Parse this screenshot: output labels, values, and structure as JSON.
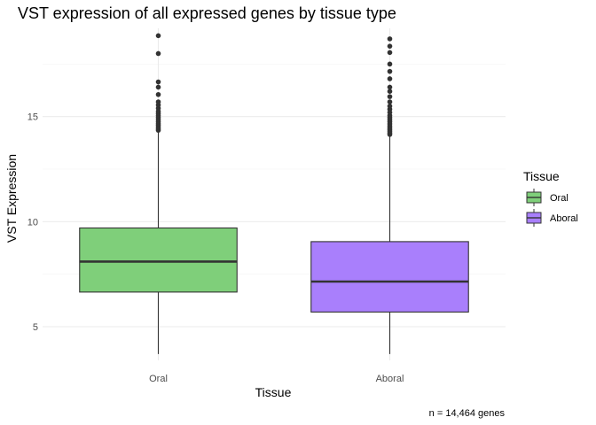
{
  "chart_data": {
    "type": "box",
    "title": "VST expression of all expressed genes by tissue type",
    "xlabel": "Tissue",
    "ylabel": "VST Expression",
    "caption": "n = 14,464 genes",
    "categories": [
      "Oral",
      "Aboral"
    ],
    "ylim": [
      3.4,
      19.2
    ],
    "yticks": [
      5,
      10,
      15
    ],
    "grid": true,
    "legend": {
      "title": "Tissue",
      "position": "right"
    },
    "series": [
      {
        "name": "Oral",
        "color": "#7fcf7a",
        "whisker_low": 3.7,
        "q1": 6.65,
        "median": 8.1,
        "q3": 9.7,
        "whisker_high": 14.3,
        "outliers": [
          14.35,
          14.42,
          14.5,
          14.58,
          14.66,
          14.75,
          14.85,
          14.95,
          15.05,
          15.15,
          15.25,
          15.4,
          15.55,
          15.7,
          16.05,
          16.4,
          16.65,
          18.0,
          18.85
        ]
      },
      {
        "name": "Aboral",
        "color": "#a97ffc",
        "whisker_low": 3.7,
        "q1": 5.7,
        "median": 7.15,
        "q3": 9.05,
        "whisker_high": 14.1,
        "outliers": [
          14.15,
          14.22,
          14.3,
          14.38,
          14.46,
          14.55,
          14.65,
          14.75,
          14.85,
          14.95,
          15.05,
          15.2,
          15.35,
          15.5,
          15.7,
          15.95,
          16.2,
          16.4,
          16.8,
          17.15,
          17.5,
          18.05,
          18.35,
          18.7
        ]
      }
    ]
  }
}
